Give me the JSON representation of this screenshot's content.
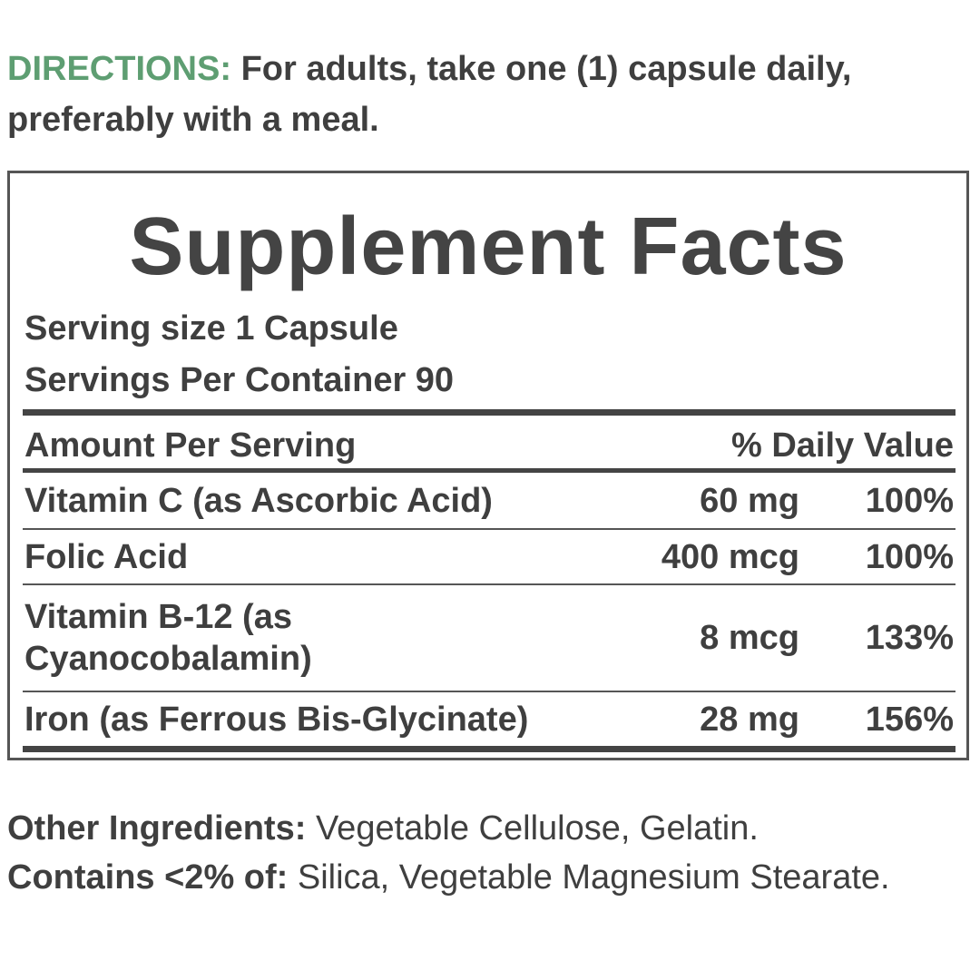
{
  "directions": {
    "label": "DIRECTIONS:",
    "text": "For adults, take one (1) capsule daily, preferably with a meal."
  },
  "facts": {
    "title": "Supplement Facts",
    "serving_size": "Serving size 1 Capsule",
    "servings_per_container": "Servings Per Container 90",
    "header": {
      "amount": "Amount Per Serving",
      "daily_value": "% Daily Value"
    },
    "rows": [
      [
        "Vitamin C (as Ascorbic Acid)",
        "60 mg",
        "100%"
      ],
      [
        "Folic Acid",
        "400 mcg",
        "100%"
      ],
      [
        "Vitamin B-12 (as Cyanocobalamin)",
        "8 mcg",
        "133%"
      ],
      [
        "Iron (as Ferrous Bis-Glycinate)",
        "28 mg",
        "156%"
      ]
    ]
  },
  "other": {
    "label": "Other Ingredients:",
    "text": "Vegetable Cellulose, Gelatin.",
    "contains_label": "Contains <2% of:",
    "contains_text": "Silica, Vegetable Magnesium Stearate."
  }
}
